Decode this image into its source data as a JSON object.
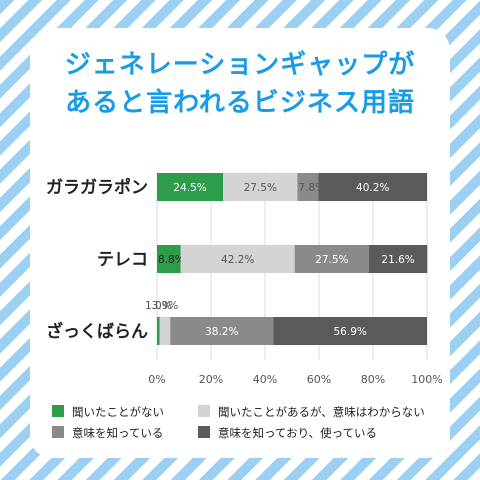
{
  "title": {
    "line1": "ジェネレーションギャップが",
    "line2": "あると言われるビジネス用語"
  },
  "colors": {
    "heard_never": "#2e9d4a",
    "heard_not_understand": "#d4d4d4",
    "know_meaning": "#8a8a8a",
    "know_and_use": "#5a5a5a",
    "title": "#1a9be6",
    "stripe": "#9bd0f2"
  },
  "chart_data": {
    "type": "bar",
    "orientation": "horizontal",
    "stacked": true,
    "categories": [
      "ガラガラポン",
      "テレコ",
      "ざっくばらん"
    ],
    "series": [
      {
        "name": "聞いたことがない",
        "values": [
          24.5,
          8.8,
          1.0
        ],
        "labels": [
          "24.5%",
          "8.8%",
          "1.0%"
        ]
      },
      {
        "name": "聞いたことがあるが、意味はわからない",
        "values": [
          27.5,
          42.2,
          3.9
        ],
        "labels": [
          "27.5%",
          "42.2%",
          "3.9%"
        ]
      },
      {
        "name": "意味を知っている",
        "values": [
          7.8,
          27.5,
          38.2
        ],
        "labels": [
          "7.8%",
          "27.5%",
          "38.2%"
        ]
      },
      {
        "name": "意味を知っており、使っている",
        "values": [
          40.2,
          21.6,
          56.9
        ],
        "labels": [
          "40.2%",
          "21.6%",
          "56.9%"
        ]
      }
    ],
    "xlim": [
      0,
      100
    ],
    "xticks": [
      "0%",
      "20%",
      "40%",
      "60%",
      "80%",
      "100%"
    ],
    "grid": true,
    "legend_position": "bottom"
  }
}
